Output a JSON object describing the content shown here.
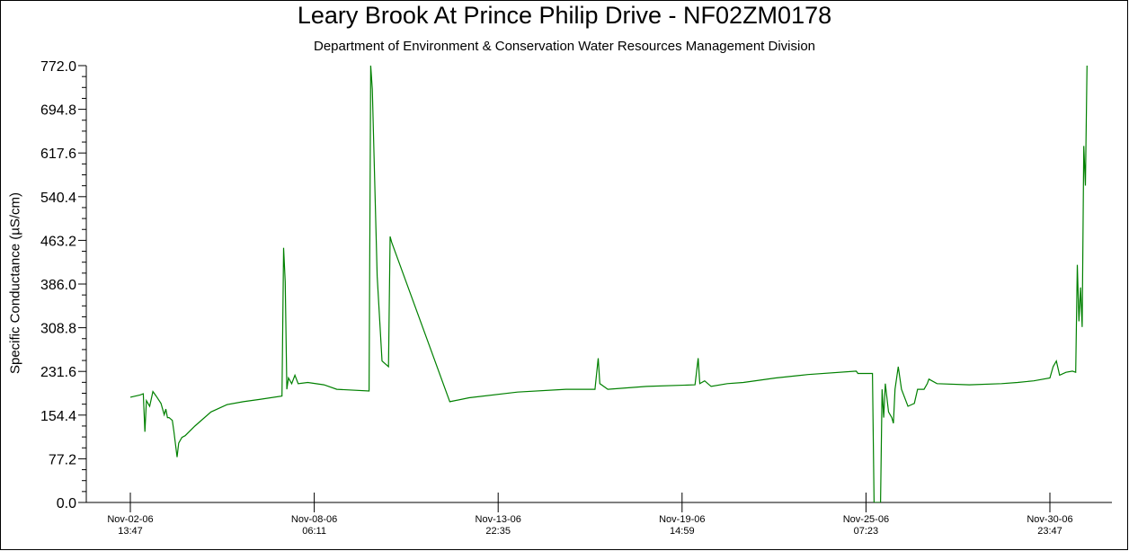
{
  "chart_data": {
    "type": "line",
    "title": "Leary Brook At Prince Philip Drive - NF02ZM0178",
    "subtitle": "Department of Environment & Conservation Water Resources Management Division",
    "xlabel": "",
    "ylabel": "Specific Conductance (µS/cm)",
    "ylim": [
      0,
      772
    ],
    "y_ticks": [
      "0.0",
      "77.2",
      "154.4",
      "231.6",
      "308.8",
      "386.0",
      "463.2",
      "540.4",
      "617.6",
      "694.8",
      "772.0"
    ],
    "x_ticks": [
      {
        "date": "Nov-02-06",
        "time": "13:47"
      },
      {
        "date": "Nov-08-06",
        "time": "06:11"
      },
      {
        "date": "Nov-13-06",
        "time": "22:35"
      },
      {
        "date": "Nov-19-06",
        "time": "14:59"
      },
      {
        "date": "Nov-25-06",
        "time": "07:23"
      },
      {
        "date": "Nov-30-06",
        "time": "23:47"
      }
    ],
    "line_color": "#008000",
    "grid": false,
    "series": [
      {
        "name": "",
        "points": [
          [
            0.0,
            186
          ],
          [
            0.3,
            190
          ],
          [
            0.4,
            192
          ],
          [
            0.45,
            125
          ],
          [
            0.5,
            180
          ],
          [
            0.6,
            170
          ],
          [
            0.7,
            196
          ],
          [
            0.8,
            188
          ],
          [
            0.95,
            175
          ],
          [
            1.05,
            155
          ],
          [
            1.1,
            165
          ],
          [
            1.15,
            150
          ],
          [
            1.2,
            150
          ],
          [
            1.3,
            145
          ],
          [
            1.35,
            125
          ],
          [
            1.45,
            80
          ],
          [
            1.5,
            105
          ],
          [
            1.6,
            115
          ],
          [
            1.7,
            118
          ],
          [
            2.0,
            135
          ],
          [
            2.5,
            160
          ],
          [
            3.0,
            173
          ],
          [
            3.5,
            178
          ],
          [
            4.0,
            182
          ],
          [
            4.7,
            188
          ],
          [
            4.75,
            450
          ],
          [
            4.8,
            390
          ],
          [
            4.85,
            200
          ],
          [
            4.9,
            220
          ],
          [
            5.0,
            210
          ],
          [
            5.1,
            225
          ],
          [
            5.2,
            210
          ],
          [
            5.5,
            212
          ],
          [
            6.0,
            208
          ],
          [
            6.4,
            200
          ],
          [
            7.4,
            197
          ],
          [
            7.45,
            772
          ],
          [
            7.5,
            730
          ],
          [
            7.65,
            400
          ],
          [
            7.8,
            250
          ],
          [
            8.0,
            240
          ],
          [
            8.05,
            470
          ],
          [
            8.1,
            460
          ],
          [
            9.9,
            178
          ],
          [
            10.5,
            185
          ],
          [
            12.0,
            195
          ],
          [
            13.5,
            200
          ],
          [
            14.4,
            200
          ],
          [
            14.5,
            255
          ],
          [
            14.55,
            210
          ],
          [
            14.8,
            200
          ],
          [
            16.0,
            205
          ],
          [
            17.5,
            208
          ],
          [
            17.6,
            255
          ],
          [
            17.65,
            210
          ],
          [
            17.8,
            215
          ],
          [
            18.0,
            205
          ],
          [
            18.5,
            210
          ],
          [
            19.0,
            212
          ],
          [
            20.0,
            220
          ],
          [
            21.0,
            226
          ],
          [
            22.5,
            232
          ],
          [
            22.55,
            228
          ],
          [
            23.0,
            228
          ],
          [
            23.05,
            0
          ],
          [
            23.25,
            0
          ],
          [
            23.3,
            200
          ],
          [
            23.35,
            150
          ],
          [
            23.4,
            210
          ],
          [
            23.5,
            160
          ],
          [
            23.6,
            150
          ],
          [
            23.65,
            140
          ],
          [
            23.7,
            200
          ],
          [
            23.8,
            240
          ],
          [
            23.9,
            200
          ],
          [
            24.1,
            170
          ],
          [
            24.3,
            175
          ],
          [
            24.4,
            200
          ],
          [
            24.6,
            200
          ],
          [
            24.7,
            210
          ],
          [
            24.75,
            218
          ],
          [
            25.0,
            210
          ],
          [
            26.0,
            208
          ],
          [
            27.0,
            210
          ],
          [
            27.5,
            212
          ],
          [
            28.0,
            215
          ],
          [
            28.5,
            220
          ],
          [
            28.6,
            240
          ],
          [
            28.7,
            250
          ],
          [
            28.8,
            225
          ],
          [
            29.0,
            230
          ],
          [
            29.2,
            232
          ],
          [
            29.3,
            230
          ],
          [
            29.35,
            420
          ],
          [
            29.4,
            320
          ],
          [
            29.45,
            380
          ],
          [
            29.5,
            310
          ],
          [
            29.55,
            630
          ],
          [
            29.6,
            560
          ],
          [
            29.65,
            772
          ]
        ]
      }
    ]
  }
}
